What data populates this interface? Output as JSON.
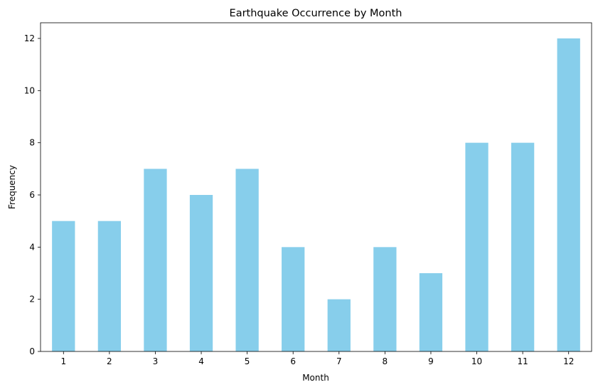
{
  "chart_data": {
    "type": "bar",
    "title": "Earthquake Occurrence by Month",
    "xlabel": "Month",
    "ylabel": "Frequency",
    "categories": [
      "1",
      "2",
      "3",
      "4",
      "5",
      "6",
      "7",
      "8",
      "9",
      "10",
      "11",
      "12"
    ],
    "values": [
      5,
      5,
      7,
      6,
      7,
      4,
      2,
      4,
      3,
      8,
      8,
      12
    ],
    "ylim": [
      0,
      12.6
    ],
    "yticks": [
      0,
      2,
      4,
      6,
      8,
      10,
      12
    ],
    "grid": false,
    "legend": "none",
    "bar_color": "#87CEEB"
  }
}
